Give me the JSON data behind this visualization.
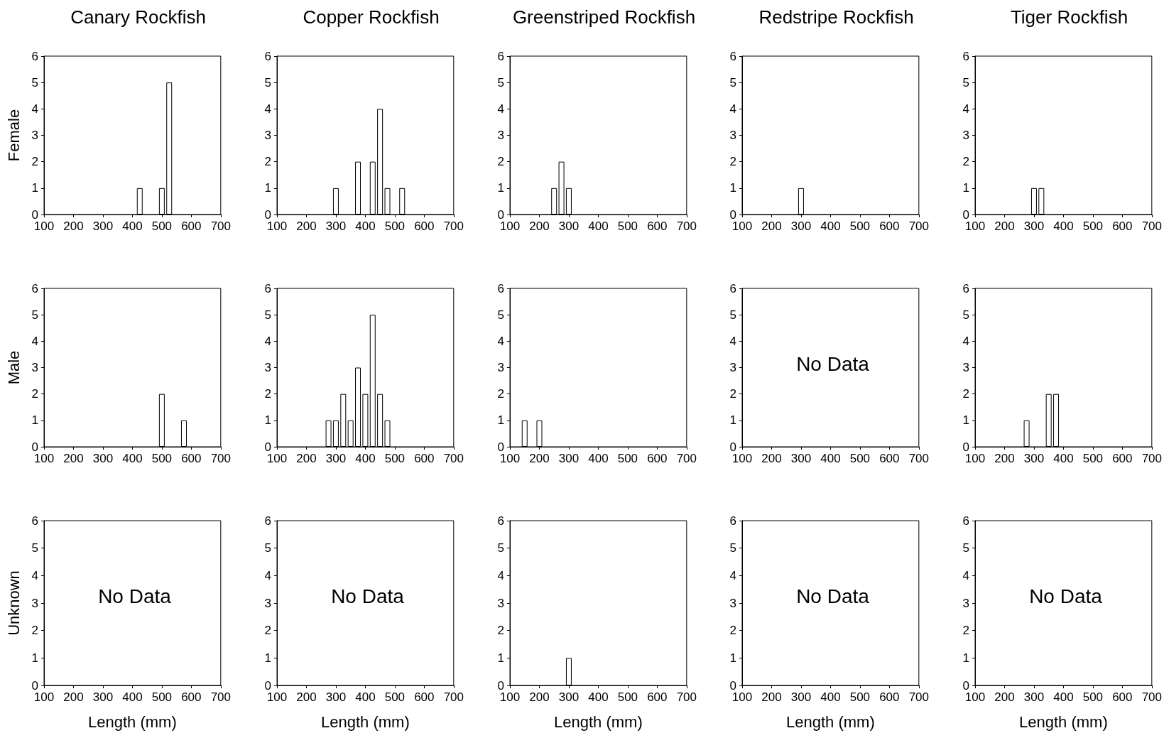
{
  "chart_data": [
    {
      "type": "bar",
      "title": "Canary Rockfish",
      "ylabel": "Female",
      "x": [
        425,
        500,
        525
      ],
      "values": [
        1,
        1,
        5
      ],
      "color": "#ffffff",
      "xlim": [
        100,
        700
      ],
      "xticks": [
        100,
        200,
        300,
        400,
        500,
        600,
        700
      ],
      "ylim": [
        0,
        6
      ],
      "yticks": [
        0,
        1,
        2,
        3,
        4,
        5,
        6
      ]
    },
    {
      "type": "bar",
      "title": "Copper Rockfish",
      "x": [
        300,
        375,
        425,
        450,
        475,
        525
      ],
      "values": [
        1,
        2,
        2,
        4,
        1,
        1
      ],
      "color": "#ffffff",
      "xlim": [
        100,
        700
      ],
      "xticks": [
        100,
        200,
        300,
        400,
        500,
        600,
        700
      ],
      "ylim": [
        0,
        6
      ],
      "yticks": [
        0,
        1,
        2,
        3,
        4,
        5,
        6
      ]
    },
    {
      "type": "bar",
      "title": "Greenstriped Rockfish",
      "x": [
        250,
        275,
        300
      ],
      "values": [
        1,
        2,
        1
      ],
      "color": "#ffffff",
      "xlim": [
        100,
        700
      ],
      "xticks": [
        100,
        200,
        300,
        400,
        500,
        600,
        700
      ],
      "ylim": [
        0,
        6
      ],
      "yticks": [
        0,
        1,
        2,
        3,
        4,
        5,
        6
      ]
    },
    {
      "type": "bar",
      "title": "Redstripe Rockfish",
      "x": [
        300
      ],
      "values": [
        1
      ],
      "color": "#ffffff",
      "xlim": [
        100,
        700
      ],
      "xticks": [
        100,
        200,
        300,
        400,
        500,
        600,
        700
      ],
      "ylim": [
        0,
        6
      ],
      "yticks": [
        0,
        1,
        2,
        3,
        4,
        5,
        6
      ]
    },
    {
      "type": "bar",
      "title": "Tiger Rockfish",
      "x": [
        300,
        325
      ],
      "values": [
        1,
        1
      ],
      "color": "#ffffff",
      "xlim": [
        100,
        700
      ],
      "xticks": [
        100,
        200,
        300,
        400,
        500,
        600,
        700
      ],
      "ylim": [
        0,
        6
      ],
      "yticks": [
        0,
        1,
        2,
        3,
        4,
        5,
        6
      ]
    },
    {
      "type": "bar",
      "ylabel": "Male",
      "x": [
        500,
        575
      ],
      "values": [
        2,
        1
      ],
      "color": "#ffffff",
      "xlim": [
        100,
        700
      ],
      "xticks": [
        100,
        200,
        300,
        400,
        500,
        600,
        700
      ],
      "ylim": [
        0,
        6
      ],
      "yticks": [
        0,
        1,
        2,
        3,
        4,
        5,
        6
      ]
    },
    {
      "type": "bar",
      "x": [
        275,
        300,
        325,
        350,
        375,
        400,
        425,
        450,
        475
      ],
      "values": [
        1,
        1,
        2,
        1,
        3,
        2,
        5,
        2,
        1
      ],
      "color": "#ffffff",
      "xlim": [
        100,
        700
      ],
      "xticks": [
        100,
        200,
        300,
        400,
        500,
        600,
        700
      ],
      "ylim": [
        0,
        6
      ],
      "yticks": [
        0,
        1,
        2,
        3,
        4,
        5,
        6
      ]
    },
    {
      "type": "bar",
      "x": [
        150,
        200
      ],
      "values": [
        1,
        1
      ],
      "color": "#ffffff",
      "xlim": [
        100,
        700
      ],
      "xticks": [
        100,
        200,
        300,
        400,
        500,
        600,
        700
      ],
      "ylim": [
        0,
        6
      ],
      "yticks": [
        0,
        1,
        2,
        3,
        4,
        5,
        6
      ]
    },
    {
      "type": "bar",
      "annotations": [
        "No Data"
      ],
      "xlim": [
        100,
        700
      ],
      "xticks": [
        100,
        200,
        300,
        400,
        500,
        600,
        700
      ],
      "ylim": [
        0,
        6
      ],
      "yticks": [
        0,
        1,
        2,
        3,
        4,
        5,
        6
      ]
    },
    {
      "type": "bar",
      "x": [
        275,
        350,
        375
      ],
      "values": [
        1,
        2,
        2
      ],
      "color": "#ffffff",
      "xlim": [
        100,
        700
      ],
      "xticks": [
        100,
        200,
        300,
        400,
        500,
        600,
        700
      ],
      "ylim": [
        0,
        6
      ],
      "yticks": [
        0,
        1,
        2,
        3,
        4,
        5,
        6
      ]
    },
    {
      "type": "bar",
      "ylabel": "Unknown",
      "xlabel": "Length (mm)",
      "annotations": [
        "No Data"
      ],
      "xlim": [
        100,
        700
      ],
      "xticks": [
        100,
        200,
        300,
        400,
        500,
        600,
        700
      ],
      "ylim": [
        0,
        6
      ],
      "yticks": [
        0,
        1,
        2,
        3,
        4,
        5,
        6
      ]
    },
    {
      "type": "bar",
      "xlabel": "Length (mm)",
      "annotations": [
        "No Data"
      ],
      "xlim": [
        100,
        700
      ],
      "xticks": [
        100,
        200,
        300,
        400,
        500,
        600,
        700
      ],
      "ylim": [
        0,
        6
      ],
      "yticks": [
        0,
        1,
        2,
        3,
        4,
        5,
        6
      ]
    },
    {
      "type": "bar",
      "xlabel": "Length (mm)",
      "x": [
        300
      ],
      "values": [
        1
      ],
      "color": "#ffffff",
      "xlim": [
        100,
        700
      ],
      "xticks": [
        100,
        200,
        300,
        400,
        500,
        600,
        700
      ],
      "ylim": [
        0,
        6
      ],
      "yticks": [
        0,
        1,
        2,
        3,
        4,
        5,
        6
      ]
    },
    {
      "type": "bar",
      "xlabel": "Length (mm)",
      "annotations": [
        "No Data"
      ],
      "xlim": [
        100,
        700
      ],
      "xticks": [
        100,
        200,
        300,
        400,
        500,
        600,
        700
      ],
      "ylim": [
        0,
        6
      ],
      "yticks": [
        0,
        1,
        2,
        3,
        4,
        5,
        6
      ]
    },
    {
      "type": "bar",
      "xlabel": "Length (mm)",
      "annotations": [
        "No Data"
      ],
      "xlim": [
        100,
        700
      ],
      "xticks": [
        100,
        200,
        300,
        400,
        500,
        600,
        700
      ],
      "ylim": [
        0,
        6
      ],
      "yticks": [
        0,
        1,
        2,
        3,
        4,
        5,
        6
      ]
    }
  ]
}
